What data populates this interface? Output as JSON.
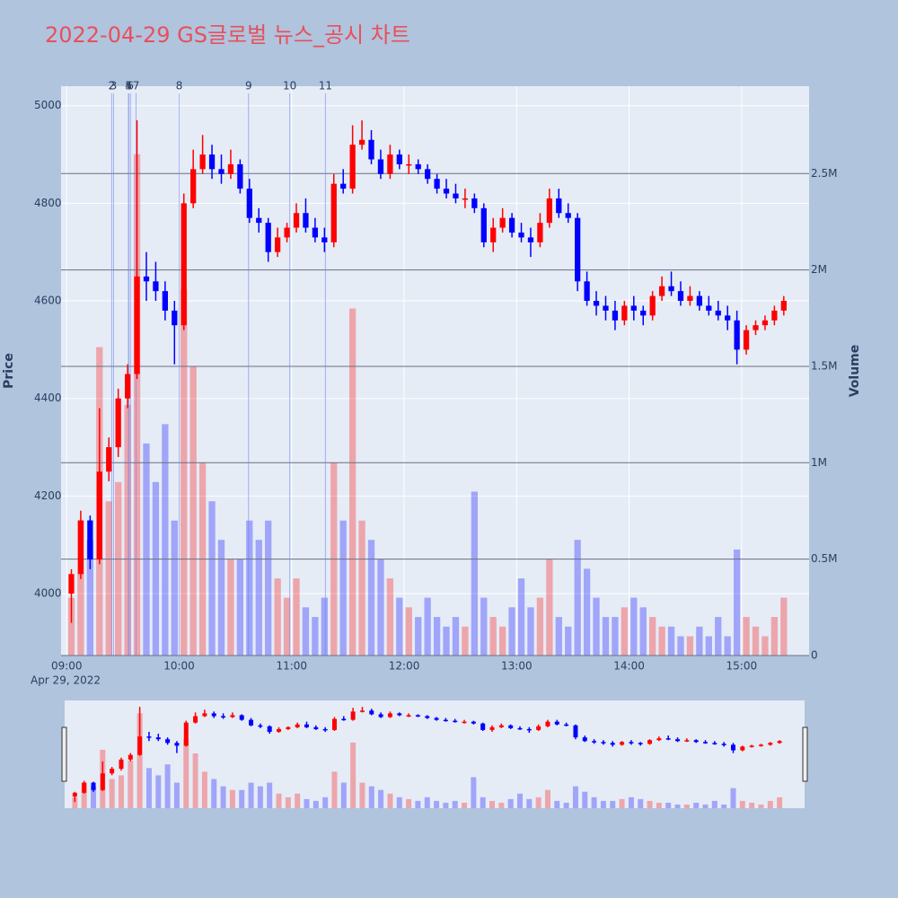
{
  "chart_data": {
    "type": "candlestick",
    "title": "2022-04-29 GS글로벌 뉴스_공시 차트",
    "y_label": "Price",
    "y2_label": "Volume",
    "x_date_label": "Apr 29, 2022",
    "increasing_color": "#ff0000",
    "decreasing_color": "#0000ff",
    "x": [
      "09:00",
      "09:05",
      "09:10",
      "09:15",
      "09:20",
      "09:25",
      "09:30",
      "09:35",
      "09:40",
      "09:45",
      "09:50",
      "09:55",
      "10:00",
      "10:05",
      "10:10",
      "10:15",
      "10:20",
      "10:25",
      "10:30",
      "10:35",
      "10:40",
      "10:45",
      "10:50",
      "10:55",
      "11:00",
      "11:05",
      "11:10",
      "11:15",
      "11:20",
      "11:25",
      "11:30",
      "11:35",
      "11:40",
      "11:45",
      "11:50",
      "11:55",
      "12:00",
      "12:05",
      "12:10",
      "12:15",
      "12:20",
      "12:25",
      "12:30",
      "12:35",
      "12:40",
      "12:45",
      "12:50",
      "12:55",
      "13:00",
      "13:05",
      "13:10",
      "13:15",
      "13:20",
      "13:25",
      "13:30",
      "13:35",
      "13:40",
      "13:45",
      "13:50",
      "13:55",
      "14:00",
      "14:05",
      "14:10",
      "14:15",
      "14:20",
      "14:25",
      "14:30",
      "14:35",
      "14:40",
      "14:45",
      "14:50",
      "14:55",
      "15:00",
      "15:05",
      "15:10",
      "15:15",
      "15:20"
    ],
    "open": [
      4000,
      4040,
      4150,
      4070,
      4250,
      4300,
      4400,
      4450,
      4650,
      4640,
      4620,
      4580,
      4550,
      4800,
      4870,
      4900,
      4870,
      4860,
      4880,
      4830,
      4770,
      4760,
      4700,
      4730,
      4750,
      4780,
      4750,
      4730,
      4720,
      4840,
      4830,
      4920,
      4930,
      4890,
      4860,
      4900,
      4880,
      4880,
      4870,
      4850,
      4830,
      4820,
      4810,
      4810,
      4790,
      4720,
      4750,
      4770,
      4740,
      4730,
      4720,
      4760,
      4810,
      4780,
      4770,
      4640,
      4600,
      4590,
      4580,
      4560,
      4590,
      4580,
      4570,
      4610,
      4630,
      4620,
      4600,
      4610,
      4590,
      4580,
      4570,
      4560,
      4500,
      4540,
      4550,
      4560,
      4580
    ],
    "high": [
      4050,
      4170,
      4160,
      4380,
      4320,
      4420,
      4470,
      4970,
      4700,
      4680,
      4640,
      4600,
      4820,
      4910,
      4940,
      4920,
      4900,
      4910,
      4890,
      4850,
      4790,
      4770,
      4750,
      4760,
      4800,
      4810,
      4770,
      4750,
      4860,
      4870,
      4960,
      4970,
      4950,
      4910,
      4920,
      4910,
      4900,
      4890,
      4880,
      4860,
      4850,
      4840,
      4830,
      4820,
      4800,
      4770,
      4790,
      4780,
      4760,
      4750,
      4780,
      4830,
      4830,
      4800,
      4780,
      4660,
      4620,
      4610,
      4600,
      4600,
      4610,
      4590,
      4620,
      4650,
      4660,
      4640,
      4630,
      4620,
      4610,
      4600,
      4590,
      4580,
      4550,
      4560,
      4570,
      4590,
      4610
    ],
    "low": [
      3940,
      4030,
      4050,
      4060,
      4230,
      4280,
      4380,
      4440,
      4600,
      4600,
      4560,
      4470,
      4540,
      4790,
      4860,
      4850,
      4840,
      4850,
      4820,
      4760,
      4740,
      4680,
      4690,
      4720,
      4740,
      4740,
      4720,
      4700,
      4710,
      4820,
      4820,
      4910,
      4880,
      4850,
      4850,
      4870,
      4860,
      4860,
      4840,
      4820,
      4810,
      4800,
      4790,
      4780,
      4710,
      4700,
      4740,
      4730,
      4720,
      4690,
      4710,
      4750,
      4770,
      4760,
      4620,
      4590,
      4570,
      4560,
      4540,
      4550,
      4560,
      4550,
      4560,
      4600,
      4610,
      4590,
      4590,
      4580,
      4570,
      4560,
      4540,
      4470,
      4490,
      4530,
      4540,
      4550,
      4570
    ],
    "close": [
      4040,
      4150,
      4070,
      4250,
      4300,
      4400,
      4450,
      4650,
      4640,
      4620,
      4580,
      4550,
      4800,
      4870,
      4900,
      4870,
      4860,
      4880,
      4830,
      4770,
      4760,
      4700,
      4730,
      4750,
      4780,
      4750,
      4730,
      4720,
      4840,
      4830,
      4920,
      4930,
      4890,
      4860,
      4900,
      4880,
      4880,
      4870,
      4850,
      4830,
      4820,
      4810,
      4810,
      4790,
      4720,
      4750,
      4770,
      4740,
      4730,
      4720,
      4760,
      4810,
      4780,
      4770,
      4640,
      4600,
      4590,
      4580,
      4560,
      4590,
      4580,
      4570,
      4610,
      4630,
      4620,
      4600,
      4610,
      4590,
      4580,
      4570,
      4560,
      4500,
      4540,
      4550,
      4560,
      4580,
      4600
    ],
    "volume": [
      300000,
      700000,
      600000,
      1600000,
      800000,
      900000,
      1300000,
      2600000,
      1100000,
      900000,
      1200000,
      700000,
      1900000,
      1500000,
      1000000,
      800000,
      600000,
      500000,
      500000,
      700000,
      600000,
      700000,
      400000,
      300000,
      400000,
      250000,
      200000,
      300000,
      1000000,
      700000,
      1800000,
      700000,
      600000,
      500000,
      400000,
      300000,
      250000,
      200000,
      300000,
      200000,
      150000,
      200000,
      150000,
      850000,
      300000,
      200000,
      150000,
      250000,
      400000,
      250000,
      300000,
      500000,
      200000,
      150000,
      600000,
      450000,
      300000,
      200000,
      200000,
      250000,
      300000,
      250000,
      200000,
      150000,
      150000,
      100000,
      100000,
      150000,
      100000,
      200000,
      100000,
      550000,
      200000,
      150000,
      100000,
      200000,
      300000
    ],
    "news": [
      {
        "label": "2",
        "x": "09:24"
      },
      {
        "label": "3",
        "x": "09:25"
      },
      {
        "label": "4",
        "x": "09:33"
      },
      {
        "label": "5",
        "x": "09:33"
      },
      {
        "label": "6",
        "x": "09:34"
      },
      {
        "label": "7",
        "x": "09:37"
      },
      {
        "label": "8",
        "x": "10:00"
      },
      {
        "label": "9",
        "x": "10:37"
      },
      {
        "label": "10",
        "x": "10:59"
      },
      {
        "label": "11",
        "x": "11:18"
      }
    ],
    "xlim": [
      "08:57",
      "15:36"
    ],
    "xticks": [
      "09:00",
      "10:00",
      "11:00",
      "12:00",
      "13:00",
      "14:00",
      "15:00"
    ],
    "ylim": [
      3873,
      5040
    ],
    "yticks": [
      4000,
      4200,
      4400,
      4600,
      4800,
      5000
    ],
    "y2lim": [
      0,
      2953000
    ],
    "y2ticks": [
      0,
      {
        "value": 500000,
        "label": "0.5M"
      },
      {
        "value": 1000000,
        "label": "1M"
      },
      {
        "value": 1500000,
        "label": "1.5M"
      },
      {
        "value": 2000000,
        "label": "2M"
      },
      {
        "value": 2500000,
        "label": "2.5M"
      }
    ],
    "grid": true
  }
}
